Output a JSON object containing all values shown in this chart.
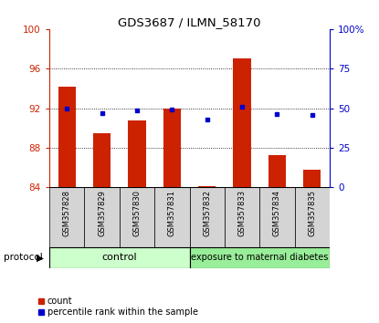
{
  "title": "GDS3687 / ILMN_58170",
  "samples": [
    "GSM357828",
    "GSM357829",
    "GSM357830",
    "GSM357831",
    "GSM357832",
    "GSM357833",
    "GSM357834",
    "GSM357835"
  ],
  "count_values": [
    94.2,
    89.5,
    90.8,
    92.0,
    84.15,
    97.0,
    87.3,
    85.8
  ],
  "percentile_values": [
    50,
    47,
    48.5,
    49,
    43,
    51,
    46.5,
    46
  ],
  "ylim_left": [
    84,
    100
  ],
  "ylim_right": [
    0,
    100
  ],
  "yticks_left": [
    84,
    88,
    92,
    96,
    100
  ],
  "yticks_right": [
    0,
    25,
    50,
    75,
    100
  ],
  "ytick_labels_left": [
    "84",
    "88",
    "92",
    "96",
    "100"
  ],
  "ytick_labels_right": [
    "0",
    "25",
    "50",
    "75",
    "100%"
  ],
  "bar_color": "#cc2200",
  "marker_color": "#0000cc",
  "grid_color": "#000000",
  "control_color": "#ccffcc",
  "treatment_color": "#99ee99",
  "control_label": "control",
  "treatment_label": "exposure to maternal diabetes",
  "protocol_label": "protocol",
  "legend_count": "count",
  "legend_percentile": "percentile rank within the sample",
  "n_control": 4,
  "n_treatment": 4
}
